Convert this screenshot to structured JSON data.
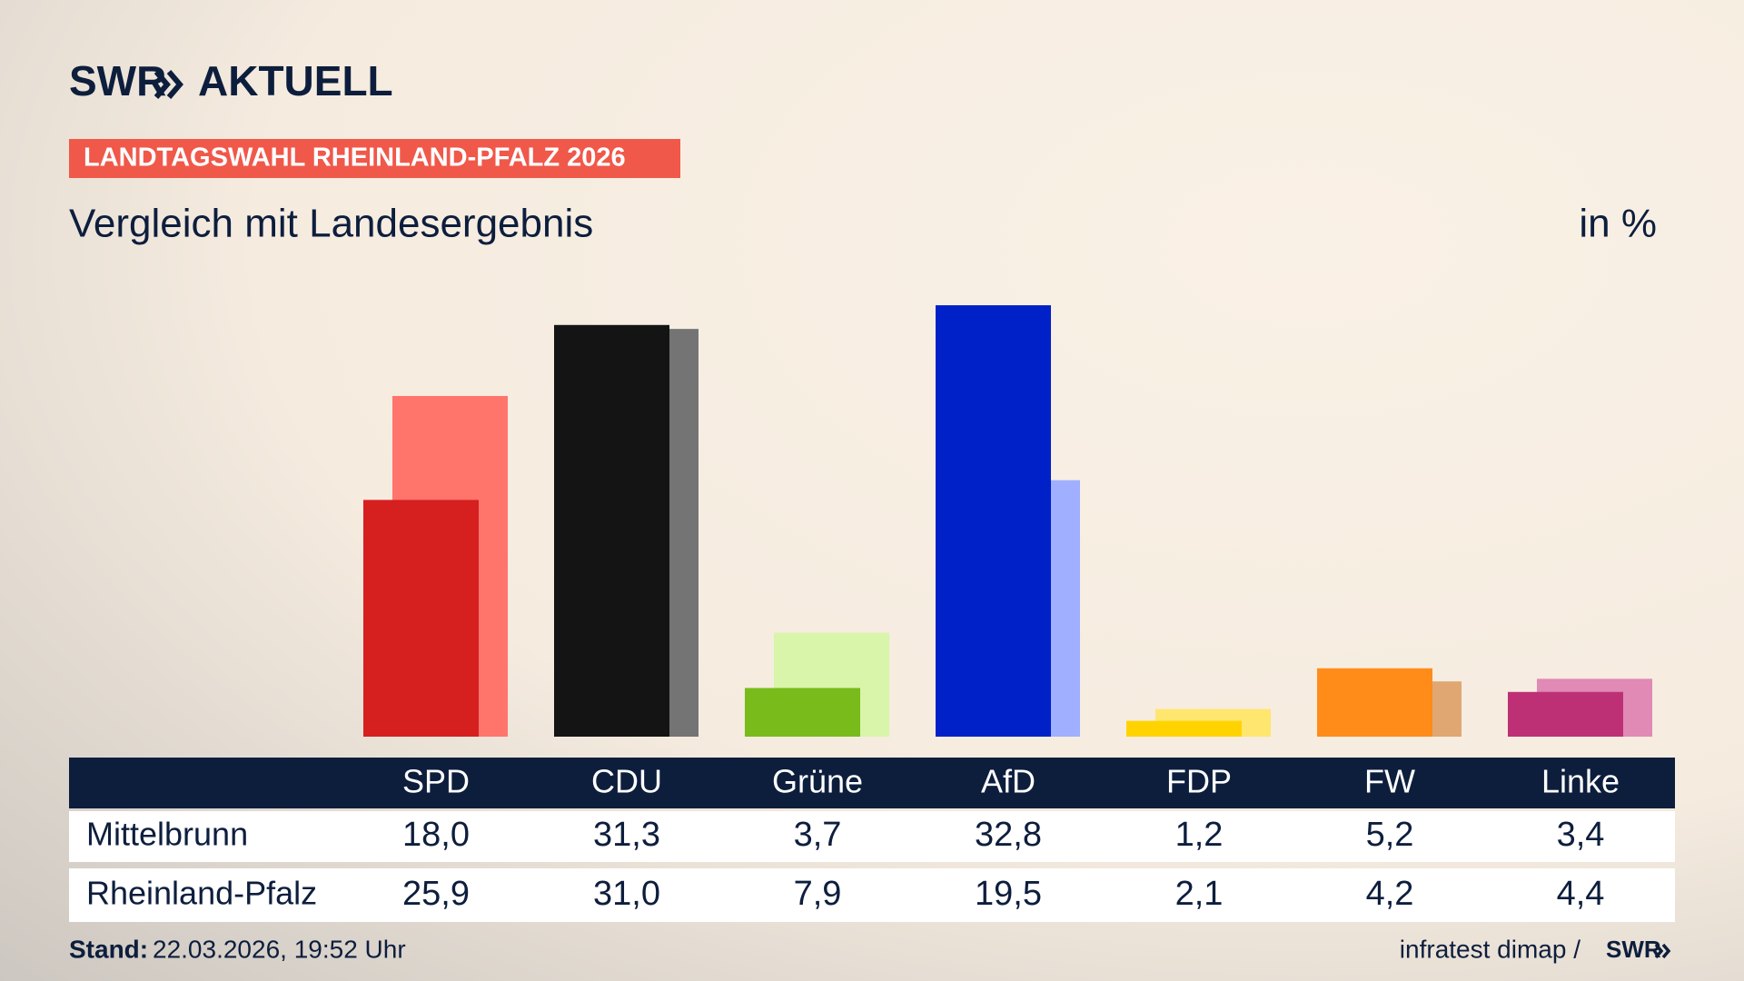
{
  "header": {
    "logo": "SWR",
    "logo_title": "AKTUELL",
    "badge": "LANDTAGSWAHL RHEINLAND-PFALZ 2026"
  },
  "chart_data": {
    "type": "bar",
    "title": "Vergleich mit Landesergebnis",
    "unit_label": "in %",
    "categories": [
      "SPD",
      "CDU",
      "Grüne",
      "AfD",
      "FDP",
      "FW",
      "Linke"
    ],
    "series": [
      {
        "name": "Mittelbrunn",
        "colors": [
          "#d61f1f",
          "#141414",
          "#79bb1a",
          "#0021c8",
          "#ffd300",
          "#ff8c19",
          "#be3076"
        ],
        "values": [
          18.0,
          31.3,
          3.7,
          32.8,
          1.2,
          5.2,
          3.4
        ],
        "value_labels": [
          "18,0",
          "31,3",
          "3,7",
          "32,8",
          "1,2",
          "5,2",
          "3,4"
        ]
      },
      {
        "name": "Rheinland-Pfalz",
        "colors": [
          "#ff756c",
          "#747474",
          "#d8f5aa",
          "#a0afff",
          "#ffe66e",
          "#e0a772",
          "#e08ab5"
        ],
        "values": [
          25.9,
          31.0,
          7.9,
          19.5,
          2.1,
          4.2,
          4.4
        ],
        "value_labels": [
          "25,9",
          "31,0",
          "7,9",
          "19,5",
          "2,1",
          "4,2",
          "4,4"
        ]
      }
    ]
  },
  "footer": {
    "stand_label": "Stand:",
    "stand": "22.03.2026, 19:52 Uhr",
    "source": "infratest dimap /",
    "brand": "SWR"
  }
}
